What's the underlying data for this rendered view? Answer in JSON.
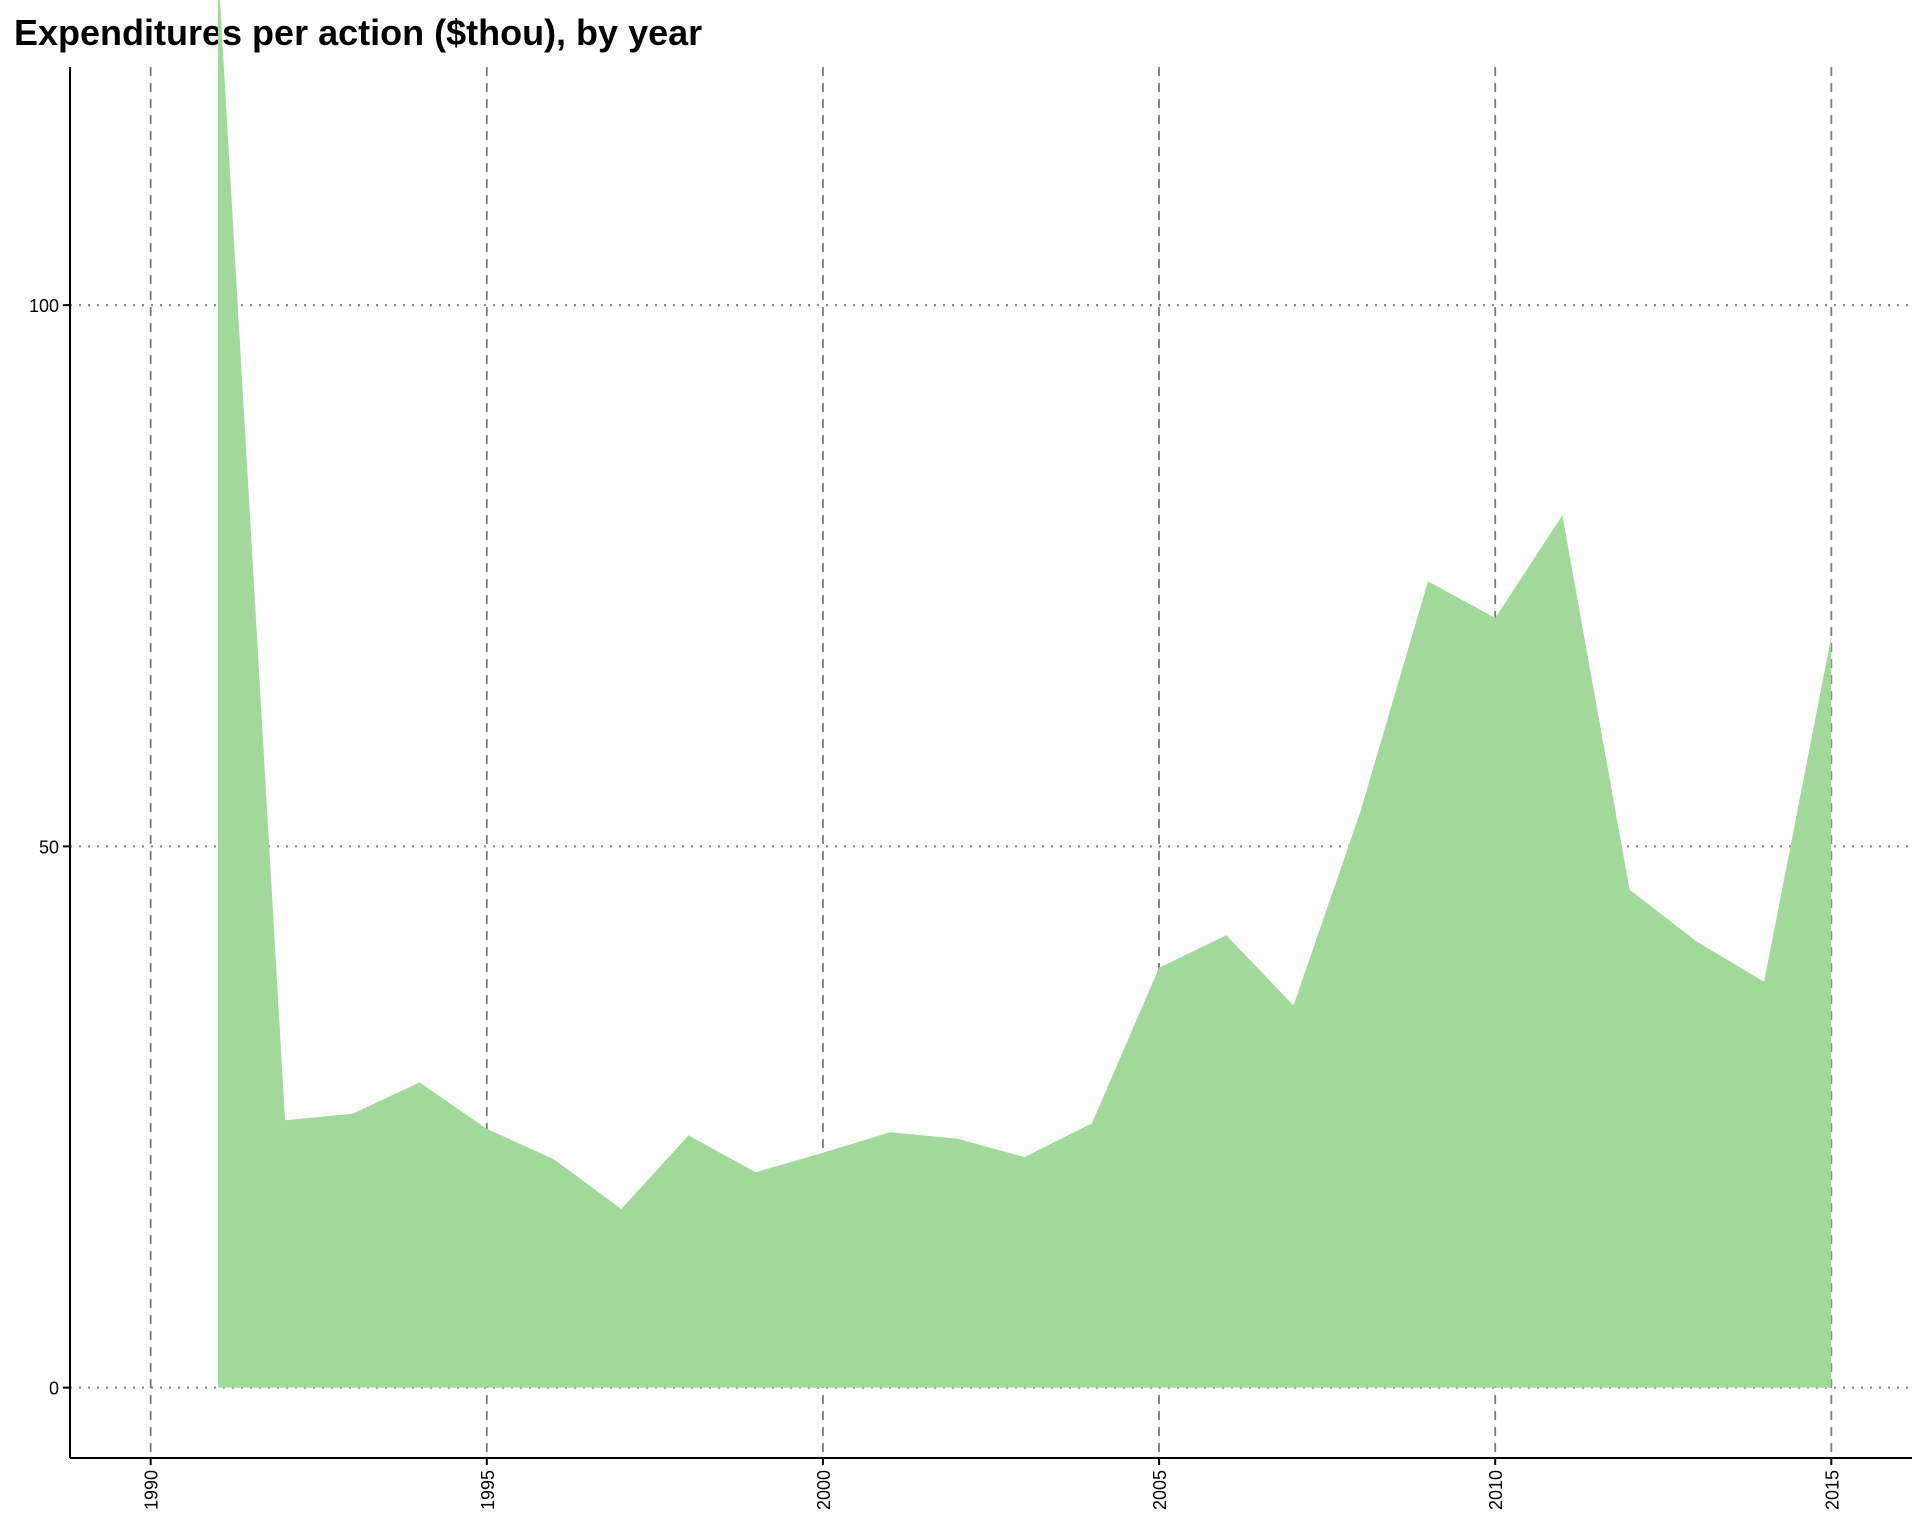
{
  "chart_data": {
    "type": "area",
    "title": "Expenditures per action ($thou), by year",
    "xlabel": "",
    "ylabel": "",
    "xlim": [
      1988.8,
      2016.2
    ],
    "ylim": [
      -6.5,
      122
    ],
    "x_ticks": [
      1990,
      1995,
      2000,
      2005,
      2010,
      2015
    ],
    "y_ticks": [
      0,
      50,
      100
    ],
    "grid": {
      "vertical": "dashed",
      "horizontal": "dotted"
    },
    "legend": "none",
    "series": [
      {
        "fill_color": "#a1d99b",
        "x": [
          1991,
          1992,
          1993,
          1994,
          1995,
          1996,
          1997,
          1998,
          1999,
          2000,
          2001,
          2002,
          2003,
          2004,
          2005,
          2006,
          2007,
          2008,
          2009,
          2010,
          2011,
          2012,
          2013,
          2014,
          2015
        ],
        "y": [
          131.5,
          24.7,
          25.3,
          28.2,
          23.9,
          21.1,
          16.5,
          23.3,
          19.9,
          21.7,
          23.6,
          23.0,
          21.3,
          24.4,
          38.8,
          41.8,
          35.3,
          53.3,
          74.5,
          71.1,
          80.6,
          46.0,
          41.2,
          37.5,
          69.4
        ]
      }
    ]
  }
}
